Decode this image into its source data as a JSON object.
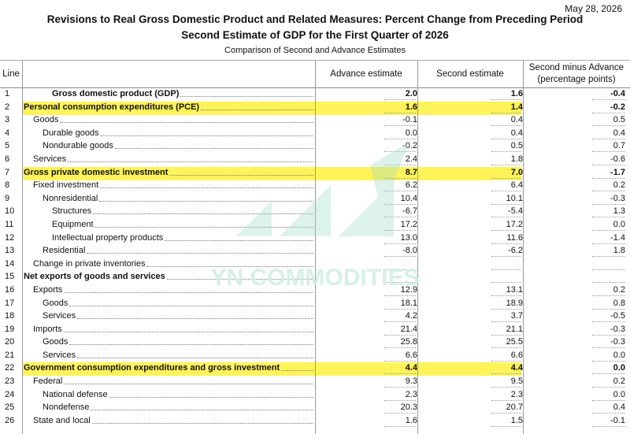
{
  "date": "May 28, 2026",
  "title_line1": "Revisions to Real Gross Domestic Product and Related Measures: Percent Change from Preceding Period",
  "title_line2": "Second Estimate of GDP for the First Quarter of 2026",
  "subtitle": "Comparison of Second and Advance Estimates",
  "watermark_text": "YN COMMODITIES",
  "colors": {
    "highlight": "#fff35a",
    "watermark": "#cfeee3"
  },
  "headers": {
    "line": "Line",
    "advance": "Advance estimate",
    "second": "Second estimate",
    "diff_l1": "Second minus Advance",
    "diff_l2": "(percentage points)"
  },
  "rows": [
    {
      "line": "1",
      "label": "Gross domestic product (GDP)",
      "indent": 3,
      "bold": true,
      "highlight": false,
      "adv": "2.0",
      "sec": "1.6",
      "diff": "-0.4"
    },
    {
      "line": "2",
      "label": "Personal consumption expenditures (PCE)",
      "indent": 0,
      "bold": true,
      "highlight": true,
      "adv": "1.6",
      "sec": "1.4",
      "diff": "-0.2"
    },
    {
      "line": "3",
      "label": "Goods",
      "indent": 1,
      "bold": false,
      "highlight": false,
      "adv": "-0.1",
      "sec": "0.4",
      "diff": "0.5"
    },
    {
      "line": "4",
      "label": "Durable goods",
      "indent": 2,
      "bold": false,
      "highlight": false,
      "adv": "0.0",
      "sec": "0.4",
      "diff": "0.4"
    },
    {
      "line": "5",
      "label": "Nondurable goods",
      "indent": 2,
      "bold": false,
      "highlight": false,
      "adv": "-0.2",
      "sec": "0.5",
      "diff": "0.7"
    },
    {
      "line": "6",
      "label": "Services",
      "indent": 1,
      "bold": false,
      "highlight": false,
      "adv": "2.4",
      "sec": "1.8",
      "diff": "-0.6"
    },
    {
      "line": "7",
      "label": "Gross private domestic investment",
      "indent": 0,
      "bold": true,
      "highlight": true,
      "adv": "8.7",
      "sec": "7.0",
      "diff": "-1.7"
    },
    {
      "line": "8",
      "label": "Fixed investment",
      "indent": 1,
      "bold": false,
      "highlight": false,
      "adv": "6.2",
      "sec": "6.4",
      "diff": "0.2"
    },
    {
      "line": "9",
      "label": "Nonresidential",
      "indent": 2,
      "bold": false,
      "highlight": false,
      "adv": "10.4",
      "sec": "10.1",
      "diff": "-0.3"
    },
    {
      "line": "10",
      "label": "Structures",
      "indent": 3,
      "bold": false,
      "highlight": false,
      "adv": "-6.7",
      "sec": "-5.4",
      "diff": "1.3"
    },
    {
      "line": "11",
      "label": "Equipment",
      "indent": 3,
      "bold": false,
      "highlight": false,
      "adv": "17.2",
      "sec": "17.2",
      "diff": "0.0"
    },
    {
      "line": "12",
      "label": "Intellectual property products",
      "indent": 3,
      "bold": false,
      "highlight": false,
      "adv": "13.0",
      "sec": "11.6",
      "diff": "-1.4"
    },
    {
      "line": "13",
      "label": "Residential",
      "indent": 2,
      "bold": false,
      "highlight": false,
      "adv": "-8.0",
      "sec": "-6.2",
      "diff": "1.8"
    },
    {
      "line": "14",
      "label": "Change in private inventories",
      "indent": 1,
      "bold": false,
      "highlight": false,
      "adv": "",
      "sec": "",
      "diff": ""
    },
    {
      "line": "15",
      "label": "Net exports of goods and services",
      "indent": 0,
      "bold": true,
      "highlight": false,
      "adv": "",
      "sec": "",
      "diff": ""
    },
    {
      "line": "16",
      "label": "Exports",
      "indent": 1,
      "bold": false,
      "highlight": false,
      "adv": "12.9",
      "sec": "13.1",
      "diff": "0.2"
    },
    {
      "line": "17",
      "label": "Goods",
      "indent": 2,
      "bold": false,
      "highlight": false,
      "adv": "18.1",
      "sec": "18.9",
      "diff": "0.8"
    },
    {
      "line": "18",
      "label": "Services",
      "indent": 2,
      "bold": false,
      "highlight": false,
      "adv": "4.2",
      "sec": "3.7",
      "diff": "-0.5"
    },
    {
      "line": "19",
      "label": "Imports",
      "indent": 1,
      "bold": false,
      "highlight": false,
      "adv": "21.4",
      "sec": "21.1",
      "diff": "-0.3"
    },
    {
      "line": "20",
      "label": "Goods",
      "indent": 2,
      "bold": false,
      "highlight": false,
      "adv": "25.8",
      "sec": "25.5",
      "diff": "-0.3"
    },
    {
      "line": "21",
      "label": "Services",
      "indent": 2,
      "bold": false,
      "highlight": false,
      "adv": "6.6",
      "sec": "6.6",
      "diff": "0.0"
    },
    {
      "line": "22",
      "label": "Government consumption expenditures and gross investment",
      "indent": 0,
      "bold": true,
      "highlight": true,
      "adv": "4.4",
      "sec": "4.4",
      "diff": "0.0"
    },
    {
      "line": "23",
      "label": "Federal",
      "indent": 1,
      "bold": false,
      "highlight": false,
      "adv": "9.3",
      "sec": "9.5",
      "diff": "0.2"
    },
    {
      "line": "24",
      "label": "National defense",
      "indent": 2,
      "bold": false,
      "highlight": false,
      "adv": "2.3",
      "sec": "2.3",
      "diff": "0.0"
    },
    {
      "line": "25",
      "label": "Nondefense",
      "indent": 2,
      "bold": false,
      "highlight": false,
      "adv": "20.3",
      "sec": "20.7",
      "diff": "0.4"
    },
    {
      "line": "26",
      "label": "State and local",
      "indent": 1,
      "bold": false,
      "highlight": false,
      "adv": "1.6",
      "sec": "1.5",
      "diff": "-0.1"
    }
  ]
}
